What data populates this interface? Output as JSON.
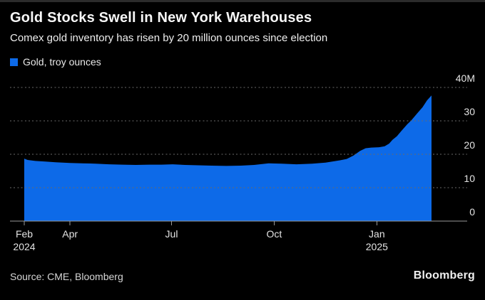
{
  "header": {
    "title": "Gold Stocks Swell in New York Warehouses",
    "subtitle": "Comex gold inventory has risen by 20 million ounces since election"
  },
  "legend": {
    "label": "Gold, troy ounces",
    "swatch_color": "#0d6ae8",
    "swatch_icon": "legend-square"
  },
  "footer": {
    "source": "Source: CME, Bloomberg",
    "logo": "Bloomberg"
  },
  "colors": {
    "background": "#000000",
    "area": "#0d6ae8",
    "grid": "#6a6a6a",
    "axis_line": "#999999",
    "tick_text": "#e3e3e3"
  },
  "chart_data": {
    "type": "area",
    "title": "Gold, troy ounces",
    "unit": "million troy ounces",
    "grid": "dotted-horizontal",
    "legend_position": "top-left",
    "x_axis": {
      "start": "2024-02-20",
      "end": "2025-02-19",
      "ticks": [
        {
          "label": "Feb",
          "sublabel": "2024",
          "date": "2024-02-20"
        },
        {
          "label": "Apr",
          "sublabel": "",
          "date": "2024-04-01"
        },
        {
          "label": "Jul",
          "sublabel": "",
          "date": "2024-07-01"
        },
        {
          "label": "Oct",
          "sublabel": "",
          "date": "2024-10-01"
        },
        {
          "label": "Jan",
          "sublabel": "2025",
          "date": "2025-01-01"
        }
      ]
    },
    "y_axis": {
      "min": 0,
      "max": 40,
      "ticks": [
        {
          "value": 0,
          "label": "0"
        },
        {
          "value": 10,
          "label": "10"
        },
        {
          "value": 20,
          "label": "20"
        },
        {
          "value": 30,
          "label": "30"
        },
        {
          "value": 40,
          "label": "40M"
        }
      ]
    },
    "series": [
      {
        "name": "Gold, troy ounces",
        "color": "#0d6ae8",
        "points": [
          {
            "date": "2024-02-20",
            "value": 18.7
          },
          {
            "date": "2024-02-23",
            "value": 18.3
          },
          {
            "date": "2024-03-01",
            "value": 18.0
          },
          {
            "date": "2024-03-10",
            "value": 17.8
          },
          {
            "date": "2024-03-19",
            "value": 17.6
          },
          {
            "date": "2024-04-01",
            "value": 17.4
          },
          {
            "date": "2024-04-12",
            "value": 17.3
          },
          {
            "date": "2024-04-24",
            "value": 17.2
          },
          {
            "date": "2024-05-06",
            "value": 17.0
          },
          {
            "date": "2024-05-18",
            "value": 16.9
          },
          {
            "date": "2024-05-30",
            "value": 16.8
          },
          {
            "date": "2024-06-11",
            "value": 16.9
          },
          {
            "date": "2024-06-22",
            "value": 16.9
          },
          {
            "date": "2024-07-02",
            "value": 17.0
          },
          {
            "date": "2024-07-13",
            "value": 16.8
          },
          {
            "date": "2024-07-25",
            "value": 16.7
          },
          {
            "date": "2024-08-06",
            "value": 16.6
          },
          {
            "date": "2024-08-19",
            "value": 16.5
          },
          {
            "date": "2024-09-01",
            "value": 16.6
          },
          {
            "date": "2024-09-13",
            "value": 16.8
          },
          {
            "date": "2024-09-26",
            "value": 17.3
          },
          {
            "date": "2024-10-08",
            "value": 17.2
          },
          {
            "date": "2024-10-21",
            "value": 17.0
          },
          {
            "date": "2024-11-04",
            "value": 17.2
          },
          {
            "date": "2024-11-16",
            "value": 17.5
          },
          {
            "date": "2024-11-29",
            "value": 18.2
          },
          {
            "date": "2024-12-05",
            "value": 18.6
          },
          {
            "date": "2024-12-11",
            "value": 19.6
          },
          {
            "date": "2024-12-17",
            "value": 21.0
          },
          {
            "date": "2024-12-22",
            "value": 21.8
          },
          {
            "date": "2024-12-27",
            "value": 22.0
          },
          {
            "date": "2025-01-03",
            "value": 22.1
          },
          {
            "date": "2025-01-08",
            "value": 22.4
          },
          {
            "date": "2025-01-12",
            "value": 23.2
          },
          {
            "date": "2025-01-15",
            "value": 24.3
          },
          {
            "date": "2025-01-19",
            "value": 25.4
          },
          {
            "date": "2025-01-23",
            "value": 27.0
          },
          {
            "date": "2025-01-28",
            "value": 28.9
          },
          {
            "date": "2025-02-01",
            "value": 30.2
          },
          {
            "date": "2025-02-06",
            "value": 32.2
          },
          {
            "date": "2025-02-11",
            "value": 34.1
          },
          {
            "date": "2025-02-15",
            "value": 36.1
          },
          {
            "date": "2025-02-19",
            "value": 37.6
          }
        ]
      }
    ]
  }
}
